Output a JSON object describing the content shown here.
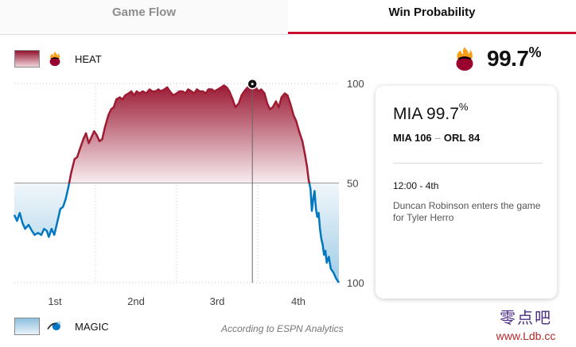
{
  "tabs": [
    {
      "label": "Game Flow",
      "active": false
    },
    {
      "label": "Win Probability",
      "active": true
    }
  ],
  "legend": {
    "home": {
      "label": "HEAT",
      "logo": "heat-logo",
      "color": "#9e1b32"
    },
    "away": {
      "label": "MAGIC",
      "logo": "magic-logo",
      "color": "#0077c0"
    }
  },
  "header_prob": {
    "value": "99.7",
    "unit": "%"
  },
  "card": {
    "team": "MIA",
    "pct": "99.7",
    "unit": "%",
    "home_score": "MIA 106",
    "separator": "–",
    "away_score": "ORL 84",
    "time": "12:00 - 4th",
    "play": "Duncan Robinson enters the game for Tyler Herro"
  },
  "credit": "According to ESPN Analytics",
  "watermark": {
    "cn": "零点吧",
    "url": "www.Ldb.cc"
  },
  "chart_data": {
    "type": "area",
    "x_unit": "game minutes elapsed",
    "xlim": [
      0,
      48
    ],
    "ylim": [
      0,
      100
    ],
    "y_ticks": [
      {
        "value": 100,
        "label": "100"
      },
      {
        "value": 50,
        "label": "50"
      },
      {
        "value": 0,
        "label": "100"
      }
    ],
    "x_ticks": [
      {
        "value": 6,
        "label": "1st"
      },
      {
        "value": 18,
        "label": "2nd"
      },
      {
        "value": 30,
        "label": "3rd"
      },
      {
        "value": 42,
        "label": "4th"
      }
    ],
    "quarter_lines": [
      12,
      24,
      36
    ],
    "grid": true,
    "marker": {
      "x": 35.2,
      "y": 99.7
    },
    "series": [
      {
        "values": [
          [
            0.0,
            34
          ],
          [
            0.4,
            31
          ],
          [
            0.8,
            35
          ],
          [
            1.2,
            30
          ],
          [
            1.6,
            27
          ],
          [
            2.1,
            29
          ],
          [
            2.6,
            26
          ],
          [
            3.0,
            24
          ],
          [
            3.5,
            25
          ],
          [
            4.0,
            24
          ],
          [
            4.4,
            27
          ],
          [
            4.8,
            26
          ],
          [
            5.1,
            23
          ],
          [
            5.5,
            27
          ],
          [
            5.9,
            24
          ],
          [
            6.4,
            31
          ],
          [
            6.8,
            37
          ],
          [
            7.2,
            38
          ],
          [
            7.6,
            42
          ],
          [
            8.0,
            48
          ],
          [
            8.4,
            55
          ],
          [
            8.9,
            62
          ],
          [
            9.3,
            63
          ],
          [
            9.7,
            67
          ],
          [
            10.2,
            72
          ],
          [
            10.6,
            75
          ],
          [
            11.0,
            70
          ],
          [
            11.4,
            73
          ],
          [
            11.8,
            76
          ],
          [
            12.2,
            74
          ],
          [
            12.6,
            71
          ],
          [
            13.0,
            72
          ],
          [
            13.4,
            78
          ],
          [
            13.9,
            84
          ],
          [
            14.3,
            87
          ],
          [
            14.7,
            88
          ],
          [
            15.1,
            92
          ],
          [
            15.6,
            93
          ],
          [
            16.0,
            92
          ],
          [
            16.4,
            94
          ],
          [
            16.9,
            95
          ],
          [
            17.3,
            96
          ],
          [
            17.7,
            94
          ],
          [
            18.1,
            96
          ],
          [
            18.5,
            95
          ],
          [
            19.0,
            96
          ],
          [
            19.5,
            95
          ],
          [
            20.0,
            97
          ],
          [
            20.4,
            96
          ],
          [
            20.9,
            96
          ],
          [
            21.3,
            97
          ],
          [
            21.7,
            96
          ],
          [
            22.2,
            97
          ],
          [
            22.6,
            98
          ],
          [
            23.0,
            96
          ],
          [
            23.5,
            94
          ],
          [
            24.0,
            95
          ],
          [
            24.4,
            96
          ],
          [
            24.9,
            96
          ],
          [
            25.3,
            95
          ],
          [
            25.7,
            97
          ],
          [
            26.2,
            96
          ],
          [
            26.6,
            95
          ],
          [
            27.0,
            97
          ],
          [
            27.4,
            96
          ],
          [
            27.9,
            96
          ],
          [
            28.3,
            95
          ],
          [
            28.7,
            97
          ],
          [
            29.2,
            97
          ],
          [
            29.6,
            96
          ],
          [
            30.1,
            97
          ],
          [
            30.6,
            98
          ],
          [
            31.0,
            99
          ],
          [
            31.4,
            98
          ],
          [
            31.8,
            96
          ],
          [
            32.3,
            92
          ],
          [
            32.7,
            88
          ],
          [
            33.2,
            90
          ],
          [
            33.6,
            94
          ],
          [
            34.0,
            96
          ],
          [
            34.5,
            98
          ],
          [
            34.9,
            99
          ],
          [
            35.2,
            99.7
          ],
          [
            35.7,
            98
          ],
          [
            36.1,
            96
          ],
          [
            36.5,
            97
          ],
          [
            37.0,
            95
          ],
          [
            37.4,
            90
          ],
          [
            37.8,
            87
          ],
          [
            38.2,
            88
          ],
          [
            38.7,
            91
          ],
          [
            39.1,
            88
          ],
          [
            39.5,
            93
          ],
          [
            40.0,
            95
          ],
          [
            40.4,
            94
          ],
          [
            40.8,
            90
          ],
          [
            41.3,
            84
          ],
          [
            41.7,
            81
          ],
          [
            42.1,
            76
          ],
          [
            42.6,
            71
          ],
          [
            43.0,
            64
          ],
          [
            43.3,
            58
          ],
          [
            43.5,
            52
          ],
          [
            43.8,
            47
          ],
          [
            44.0,
            36
          ],
          [
            44.2,
            42
          ],
          [
            44.4,
            46
          ],
          [
            44.6,
            37
          ],
          [
            44.8,
            33
          ],
          [
            45.0,
            35
          ],
          [
            45.2,
            27
          ],
          [
            45.4,
            22
          ],
          [
            45.6,
            19
          ],
          [
            45.8,
            14
          ],
          [
            46.0,
            16
          ],
          [
            46.2,
            10
          ],
          [
            46.5,
            13
          ],
          [
            46.8,
            7
          ],
          [
            47.2,
            5
          ],
          [
            47.6,
            2
          ],
          [
            48.0,
            0
          ]
        ]
      }
    ]
  }
}
